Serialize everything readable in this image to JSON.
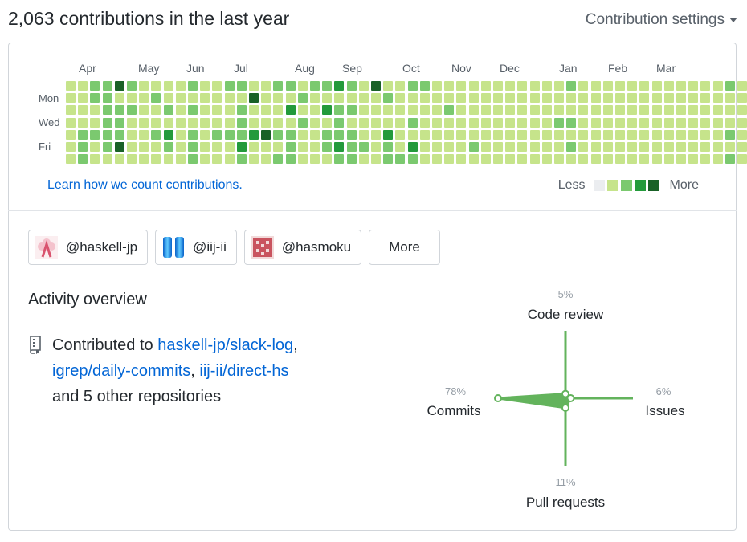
{
  "header": {
    "title": "2,063 contributions in the last year",
    "settings_label": "Contribution settings"
  },
  "calendar": {
    "months": [
      "Apr",
      "May",
      "Jun",
      "Jul",
      "Aug",
      "Sep",
      "Oct",
      "Nov",
      "Dec",
      "Jan",
      "Feb",
      "Mar"
    ],
    "days": [
      "Mon",
      "Wed",
      "Fri"
    ],
    "levels": [
      "1111111",
      "1111222",
      "2211211",
      "2222221",
      "4122241",
      "2121111",
      "1111111",
      "1211211",
      "1121321",
      "1111111",
      "2121222",
      "1111111",
      "1111211",
      "2111211",
      "2122232",
      "1411311",
      "1111411",
      "2111212",
      "2131222",
      "1212111",
      "2111111",
      "2131221",
      "3122232",
      "2121222",
      "1111121",
      "4111111",
      "1211322",
      "1111112",
      "2112132",
      "2111111",
      "1111111",
      "1121111",
      "1111111",
      "1111121",
      "1111111",
      "1111111",
      "1111111",
      "1111111",
      "1111111",
      "1111111",
      "1112111",
      "2112121",
      "1111111",
      "1111111",
      "1111111",
      "1111111",
      "1111111",
      "1111111",
      "1111111",
      "1111111",
      "1111111",
      "1111111",
      "1111111",
      "1111111",
      "2111212",
      "1111111"
    ]
  },
  "learn_link": "Learn how we count contributions.",
  "legend": {
    "less": "Less",
    "more": "More",
    "colors": [
      "#ebedf0",
      "#c6e48b",
      "#7bc96f",
      "#239a3b",
      "#196127"
    ]
  },
  "orgs": [
    {
      "label": "@haskell-jp",
      "icon": "haskell-jp-avatar-icon"
    },
    {
      "label": "@iij-ii",
      "icon": "iij-ii-avatar-icon"
    },
    {
      "label": "@hasmoku",
      "icon": "hasmoku-avatar-icon"
    }
  ],
  "orgs_more": "More",
  "activity": {
    "title": "Activity overview",
    "prefix": "Contributed to",
    "repos": [
      "haskell-jp/slack-log",
      "igrep/daily-commits",
      "iij-ii/direct-hs"
    ],
    "suffix": "and 5 other repositories"
  },
  "radar": {
    "accent": "#63b35c",
    "code_review": {
      "label": "Code review",
      "pct": "5%",
      "value": 5
    },
    "issues": {
      "label": "Issues",
      "pct": "6%",
      "value": 6
    },
    "pull_requests": {
      "label": "Pull requests",
      "pct": "11%",
      "value": 11
    },
    "commits": {
      "label": "Commits",
      "pct": "78%",
      "value": 78
    }
  }
}
